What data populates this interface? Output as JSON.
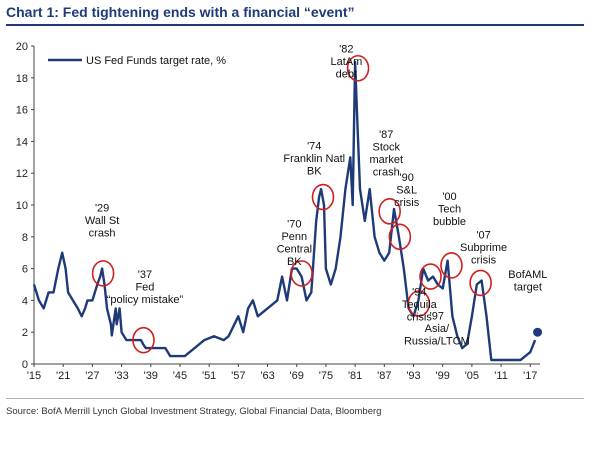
{
  "title": "Chart 1: Fed tightening ends with a financial “event”",
  "source": "Source: BofA Merrill Lynch Global Investment Strategy, Global Financial Data, Bloomberg",
  "colors": {
    "line": "#1f3a78",
    "circle": "#d11f1f",
    "target": "#1f3a78"
  },
  "chart_data": {
    "type": "line",
    "title": "Chart 1: Fed tightening ends with a financial “event”",
    "xlabel": "",
    "ylabel": "",
    "xlim": [
      1915,
      2019
    ],
    "ylim": [
      0,
      20
    ],
    "yticks": [
      0,
      2,
      4,
      6,
      8,
      10,
      12,
      14,
      16,
      18,
      20
    ],
    "xticks": [
      1915,
      1921,
      1927,
      1933,
      1939,
      1945,
      1951,
      1957,
      1963,
      1969,
      1975,
      1981,
      1987,
      1993,
      1999,
      2005,
      2011,
      2017
    ],
    "xtick_labels": [
      "'15",
      "'21",
      "'27",
      "'33",
      "'39",
      "'45",
      "'51",
      "'57",
      "'63",
      "'69",
      "'75",
      "'81",
      "'87",
      "'93",
      "'99",
      "'05",
      "'11",
      "'17"
    ],
    "grid": false,
    "legend": "top-left",
    "series": [
      {
        "name": "US Fed Funds target rate, %",
        "x": [
          1915,
          1916,
          1917,
          1918,
          1919,
          1920,
          1920.8,
          1921.5,
          1922,
          1923,
          1924,
          1924.8,
          1925.5,
          1926,
          1927,
          1928,
          1928.6,
          1929,
          1929.5,
          1930,
          1930.8,
          1931,
          1931.8,
          1932,
          1932.6,
          1933,
          1934,
          1935,
          1936,
          1937,
          1937.5,
          1938,
          1940,
          1942,
          1943,
          1946,
          1948,
          1950,
          1952,
          1954,
          1955,
          1957,
          1958,
          1959,
          1960,
          1961,
          1963,
          1965,
          1966,
          1967,
          1968,
          1969,
          1970,
          1971,
          1972,
          1973,
          1973.6,
          1974,
          1974.6,
          1975,
          1976,
          1977,
          1978,
          1979,
          1980,
          1980.5,
          1981,
          1981.5,
          1982,
          1983,
          1984,
          1985,
          1986,
          1987,
          1988,
          1989,
          1990,
          1991,
          1992,
          1993,
          1994,
          1995,
          1996,
          1997,
          1998,
          1999,
          2000,
          2001,
          2002,
          2003,
          2004,
          2005,
          2006,
          2007,
          2008,
          2009,
          2015,
          2016,
          2017,
          2018
        ],
        "y": [
          5,
          4,
          3.5,
          4.5,
          4.5,
          6,
          7,
          6,
          4.5,
          4,
          3.5,
          3,
          3.5,
          4,
          4,
          5,
          5.5,
          6,
          5,
          3.5,
          2.5,
          1.8,
          3.5,
          2.5,
          3.5,
          2,
          1.5,
          1.5,
          1.5,
          1.5,
          1.2,
          1,
          1,
          1,
          0.5,
          0.5,
          1,
          1.5,
          1.75,
          1.5,
          1.75,
          3,
          2,
          3.5,
          4,
          3,
          3.5,
          4,
          5.5,
          4,
          6,
          6,
          5.5,
          4,
          4.5,
          9,
          10.5,
          11,
          10,
          6,
          5,
          6,
          8,
          11,
          13,
          10,
          19,
          15,
          11,
          9,
          11,
          8,
          7,
          6.5,
          7,
          9.75,
          8,
          6,
          3.5,
          3,
          4,
          6,
          5.25,
          5.5,
          5,
          4.75,
          6.5,
          3,
          1.75,
          1,
          1.25,
          3,
          5,
          5.25,
          3,
          0.25,
          0.25,
          0.5,
          0.75,
          1.5
        ]
      }
    ],
    "target": {
      "x": 2018.5,
      "y": 2.0,
      "label": "BofAML target"
    },
    "annotations": [
      {
        "text": "'29 Wall St crash",
        "cx": 1929.2,
        "cy": 5.7
      },
      {
        "text": "'37 Fed “policy mistake”",
        "cx": 1937.5,
        "cy": 1.5
      },
      {
        "text": "'70 Penn Central BK",
        "cx": 1970,
        "cy": 5.7
      },
      {
        "text": "'74 Franklin Natl BK",
        "cx": 1974.4,
        "cy": 10.5
      },
      {
        "text": "'82 LatAm debt",
        "cx": 1981.6,
        "cy": 18.6
      },
      {
        "text": "'87 Stock market crash",
        "cx": 1988.1,
        "cy": 9.6
      },
      {
        "text": "'90 S&L crisis",
        "cx": 1990.2,
        "cy": 8.0
      },
      {
        "text": "'94 Tequila crisis",
        "cx": 1994.1,
        "cy": 3.8
      },
      {
        "text": "'97 Asia/ Russia/LTCM",
        "cx": 1996.5,
        "cy": 5.5
      },
      {
        "text": "'00 Tech bubble",
        "cx": 2000.8,
        "cy": 6.2
      },
      {
        "text": "'07 Subprime crisis",
        "cx": 2006.8,
        "cy": 5.1
      }
    ]
  },
  "labels": {
    "wallst": [
      "'29",
      "Wall St",
      "crash"
    ],
    "fed": [
      "'37",
      "Fed",
      "“policy mistake”"
    ],
    "penn": [
      "'70",
      "Penn",
      "Central",
      "BK"
    ],
    "franklin": [
      "'74",
      "Franklin Natl",
      "BK"
    ],
    "latam": [
      "'82",
      "LatAm",
      "debt"
    ],
    "stock": [
      "'87",
      "Stock",
      "market",
      "crash"
    ],
    "sl": [
      "'90",
      "S&L",
      "crisis"
    ],
    "tech": [
      "'00",
      "Tech",
      "bubble"
    ],
    "subprime": [
      "'07",
      "Subprime",
      "crisis"
    ],
    "tequila": [
      "'94",
      "Tequila",
      "crisis"
    ],
    "asia": [
      "'97",
      "Asia/",
      "Russia/LTCM"
    ],
    "target": [
      "BofAML",
      "target"
    ],
    "legend": "US Fed Funds target rate, %"
  }
}
